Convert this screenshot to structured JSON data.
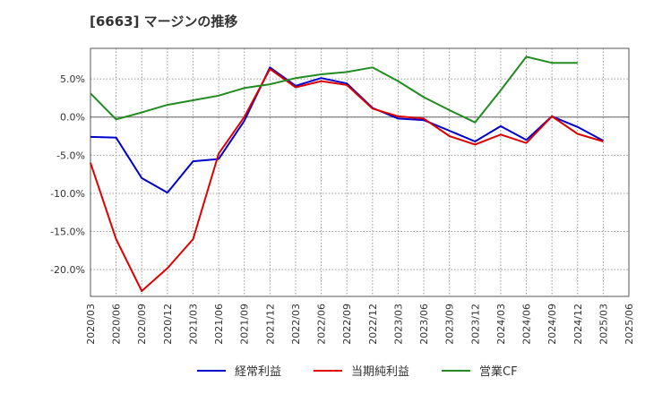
{
  "chart_data": {
    "type": "line",
    "title": "[6663]  マージンの推移",
    "xlabel": "",
    "ylabel": "",
    "ylim": [
      -23.5,
      9
    ],
    "yticks": [
      5,
      0,
      -5,
      -10,
      -15,
      -20
    ],
    "ytick_labels": [
      "5.0%",
      "0.0%",
      "-5.0%",
      "-10.0%",
      "-15.0%",
      "-20.0%"
    ],
    "categories": [
      "2020/03",
      "2020/06",
      "2020/09",
      "2020/12",
      "2021/03",
      "2021/06",
      "2021/09",
      "2021/12",
      "2022/03",
      "2022/06",
      "2022/09",
      "2022/12",
      "2023/03",
      "2023/06",
      "2023/09",
      "2023/12",
      "2024/03",
      "2024/06",
      "2024/09",
      "2024/12",
      "2025/03",
      "2025/06"
    ],
    "grid": true,
    "legend_position": "bottom",
    "series": [
      {
        "name": "経常利益",
        "color": "#0000cc",
        "values": [
          -2.6,
          -2.7,
          -8.0,
          -9.9,
          -5.8,
          -5.5,
          -0.5,
          6.5,
          4.1,
          5.1,
          4.4,
          1.2,
          -0.2,
          -0.4,
          -1.8,
          -3.2,
          -1.2,
          -3.0,
          0.1,
          -1.3,
          -3.1,
          null
        ]
      },
      {
        "name": "当期純利益",
        "color": "#dd0000",
        "values": [
          -6.0,
          -16.0,
          -22.8,
          -19.8,
          -16.0,
          -4.8,
          0.0,
          6.3,
          3.9,
          4.7,
          4.2,
          1.1,
          0.1,
          -0.2,
          -2.5,
          -3.6,
          -2.3,
          -3.4,
          0.1,
          -2.2,
          -3.2,
          null
        ]
      },
      {
        "name": "営業CF",
        "color": "#228b22",
        "values": [
          3.1,
          -0.3,
          0.6,
          1.6,
          2.2,
          2.8,
          3.8,
          4.3,
          5.1,
          5.6,
          5.9,
          6.5,
          4.7,
          2.6,
          0.9,
          -0.7,
          3.5,
          7.9,
          7.1,
          7.1,
          null,
          null
        ]
      }
    ]
  }
}
